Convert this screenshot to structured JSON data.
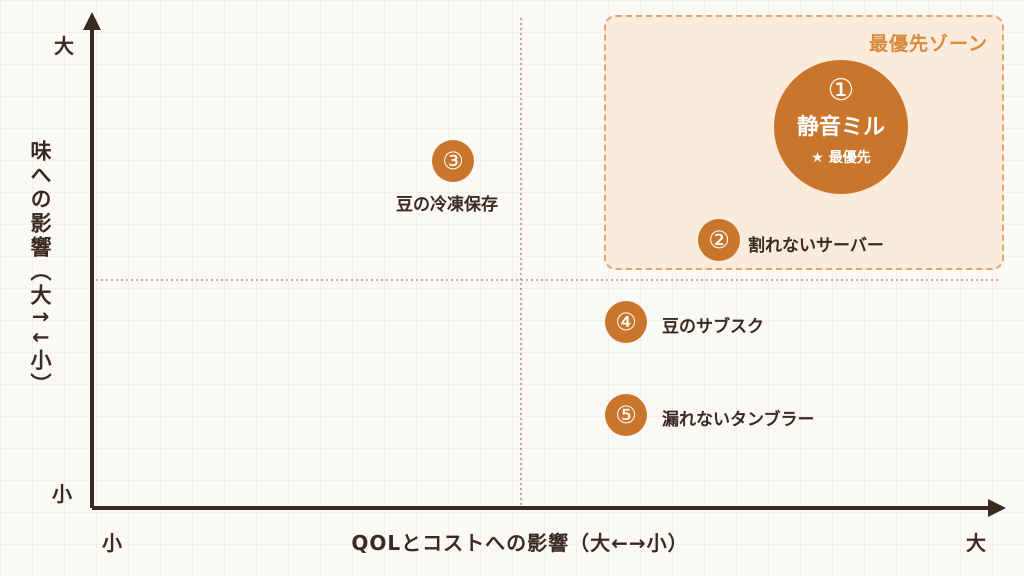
{
  "zone": {
    "title": "最優先ゾーン"
  },
  "axes": {
    "y_label": "味への影響（大↑↓小）",
    "y_top": "大",
    "y_bottom": "小",
    "x_label": "QOLとコストへの影響（大←→小）",
    "x_left": "小",
    "x_right": "大"
  },
  "items": [
    {
      "number": "①",
      "name": "静音ミル",
      "note": "★ 最優先"
    },
    {
      "number": "②",
      "name": "割れないサーバー"
    },
    {
      "number": "③",
      "name": "豆の冷凍保存"
    },
    {
      "number": "④",
      "name": "豆のサブスク"
    },
    {
      "number": "⑤",
      "name": "漏れないタンブラー"
    }
  ],
  "colors": {
    "accent": "#c9752c",
    "zone_border": "#e2a56e",
    "zone_fill": "#fbe0c4",
    "axis": "#3b2a20",
    "divider": "#b07a7a"
  }
}
